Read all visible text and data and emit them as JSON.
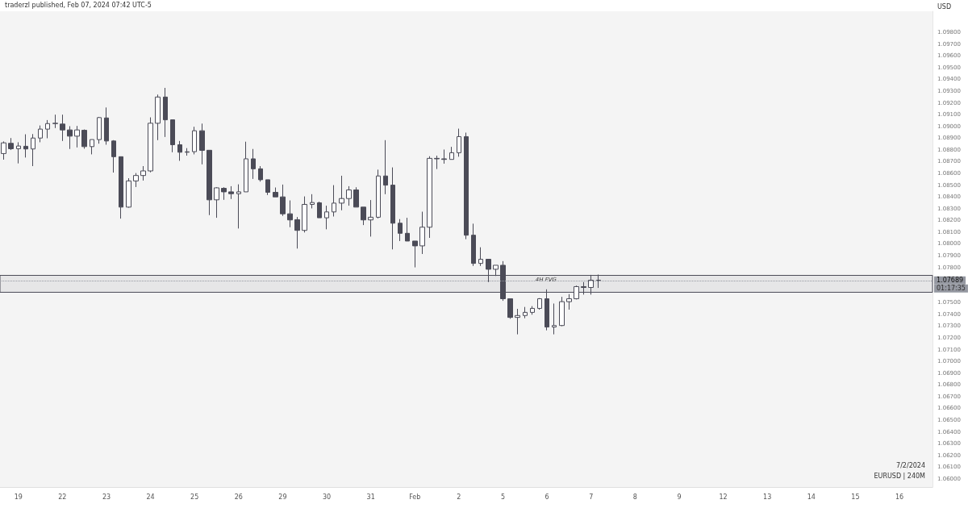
{
  "chart_data": {
    "type": "candlestick",
    "ylabel": "USD",
    "color": "#4b4b57",
    "grid": false,
    "categories": [
      null,
      null,
      "19",
      null,
      null,
      null,
      null,
      null,
      "22",
      null,
      null,
      null,
      null,
      null,
      "23",
      null,
      null,
      null,
      null,
      null,
      "24",
      null,
      null,
      null,
      null,
      null,
      "25",
      null,
      null,
      null,
      null,
      null,
      "26",
      null,
      null,
      null,
      null,
      null,
      "29",
      null,
      null,
      null,
      null,
      null,
      "30",
      null,
      null,
      null,
      null,
      null,
      "31",
      null,
      null,
      null,
      null,
      null,
      "Feb",
      null,
      null,
      null,
      null,
      null,
      "2",
      null,
      null,
      null,
      null,
      null,
      "5",
      null,
      null,
      null,
      null,
      null,
      "6",
      null,
      null,
      null,
      null,
      null,
      "7",
      null,
      null,
      null,
      null,
      null,
      "8",
      null,
      null,
      null,
      null,
      null,
      "9",
      null,
      null,
      null,
      null,
      null,
      "12",
      null,
      null,
      null,
      null,
      null,
      "13",
      null,
      null,
      null,
      null,
      null,
      "14",
      null,
      null,
      null,
      null,
      null,
      "15",
      null,
      null,
      null,
      null,
      null,
      "16",
      null,
      null,
      null,
      null
    ],
    "ohlc": [
      [
        1.08769,
        1.08872,
        1.08717,
        1.0886
      ],
      [
        1.08856,
        1.08901,
        1.08799,
        1.0881
      ],
      [
        1.0881,
        1.08865,
        1.08685,
        1.08833
      ],
      [
        1.08831,
        1.08933,
        1.08735,
        1.08808
      ],
      [
        1.08808,
        1.08935,
        1.08662,
        1.08901
      ],
      [
        1.08901,
        1.09008,
        1.08865,
        1.08977
      ],
      [
        1.08977,
        1.09054,
        1.08899,
        1.09024
      ],
      [
        1.09024,
        1.091,
        1.08986,
        1.09027
      ],
      [
        1.0902,
        1.091,
        1.08876,
        1.0897
      ],
      [
        1.0897,
        1.09002,
        1.08808,
        1.08917
      ],
      [
        1.08917,
        1.09004,
        1.08821,
        1.0897
      ],
      [
        1.08967,
        1.08974,
        1.0881,
        1.08828
      ],
      [
        1.08828,
        1.08888,
        1.08762,
        1.08888
      ],
      [
        1.08888,
        1.09081,
        1.08853,
        1.09075
      ],
      [
        1.09072,
        1.09161,
        1.08844,
        1.08876
      ],
      [
        1.08876,
        1.08883,
        1.08607,
        1.08742
      ],
      [
        1.08742,
        1.08742,
        1.08215,
        1.08313
      ],
      [
        1.08313,
        1.08559,
        1.08308,
        1.08536
      ],
      [
        1.08536,
        1.08603,
        1.08484,
        1.08582
      ],
      [
        1.08582,
        1.08662,
        1.08539,
        1.08621
      ],
      [
        1.08621,
        1.09077,
        1.08609,
        1.09027
      ],
      [
        1.09027,
        1.09271,
        1.08883,
        1.0925
      ],
      [
        1.0925,
        1.09328,
        1.0891,
        1.09056
      ],
      [
        1.09056,
        1.09056,
        1.0878,
        1.08844
      ],
      [
        1.08844,
        1.08876,
        1.08707,
        1.0878
      ],
      [
        1.0878,
        1.08815,
        1.08751,
        1.08784
      ],
      [
        1.08785,
        1.08997,
        1.08762,
        1.08963
      ],
      [
        1.08963,
        1.09024,
        1.08677,
        1.08796
      ],
      [
        1.08797,
        1.08797,
        1.08245,
        1.08375
      ],
      [
        1.08375,
        1.08482,
        1.08222,
        1.08477
      ],
      [
        1.08473,
        1.08482,
        1.08375,
        1.08443
      ],
      [
        1.08443,
        1.08491,
        1.08382,
        1.08427
      ],
      [
        1.08427,
        1.08507,
        1.08131,
        1.08443
      ],
      [
        1.08443,
        1.0887,
        1.08443,
        1.08724
      ],
      [
        1.08724,
        1.08808,
        1.08553,
        1.08639
      ],
      [
        1.08639,
        1.08662,
        1.0853,
        1.08546
      ],
      [
        1.08546,
        1.08546,
        1.08416,
        1.08439
      ],
      [
        1.08439,
        1.0848,
        1.084,
        1.084
      ],
      [
        1.084,
        1.08505,
        1.08238,
        1.08256
      ],
      [
        1.08256,
        1.0837,
        1.08142,
        1.08204
      ],
      [
        1.08206,
        1.08229,
        1.0796,
        1.08115
      ],
      [
        1.08115,
        1.08404,
        1.08097,
        1.08336
      ],
      [
        1.08336,
        1.08423,
        1.08302,
        1.08352
      ],
      [
        1.0835,
        1.08359,
        1.08222,
        1.08222
      ],
      [
        1.08222,
        1.08325,
        1.08124,
        1.08272
      ],
      [
        1.08272,
        1.085,
        1.08233,
        1.08347
      ],
      [
        1.08347,
        1.0858,
        1.08286,
        1.08386
      ],
      [
        1.08386,
        1.08491,
        1.08325,
        1.08459
      ],
      [
        1.08459,
        1.08482,
        1.08313,
        1.08313
      ],
      [
        1.08313,
        1.08313,
        1.0816,
        1.08204
      ],
      [
        1.08204,
        1.08373,
        1.08062,
        1.08227
      ],
      [
        1.08227,
        1.08632,
        1.08217,
        1.08578
      ],
      [
        1.08578,
        1.08883,
        1.08423,
        1.085
      ],
      [
        1.085,
        1.08651,
        1.07953,
        1.08176
      ],
      [
        1.08176,
        1.08211,
        1.08024,
        1.0809
      ],
      [
        1.0809,
        1.08222,
        1.08024,
        1.08024
      ],
      [
        1.08024,
        1.08024,
        1.078,
        1.07983
      ],
      [
        1.07983,
        1.08274,
        1.07914,
        1.08142
      ],
      [
        1.08142,
        1.08746,
        1.08051,
        1.08728
      ],
      [
        1.08728,
        1.08751,
        1.08637,
        1.08724
      ],
      [
        1.08724,
        1.08803,
        1.08683,
        1.08719
      ],
      [
        1.08719,
        1.08826,
        1.08719,
        1.08776
      ],
      [
        1.08776,
        1.08981,
        1.08742,
        1.08913
      ],
      [
        1.08913,
        1.08947,
        1.0804,
        1.08074
      ],
      [
        1.08074,
        1.08172,
        1.07812,
        1.07834
      ],
      [
        1.07834,
        1.07971,
        1.07812,
        1.07869
      ],
      [
        1.07869,
        1.07869,
        1.07675,
        1.07784
      ],
      [
        1.07784,
        1.07818,
        1.07727,
        1.07818
      ],
      [
        1.07818,
        1.07853,
        1.07515,
        1.07533
      ],
      [
        1.07533,
        1.07533,
        1.07362,
        1.07374
      ],
      [
        1.07374,
        1.07447,
        1.0723,
        1.0739
      ],
      [
        1.0739,
        1.07463,
        1.07367,
        1.07417
      ],
      [
        1.07417,
        1.0747,
        1.07397,
        1.07451
      ],
      [
        1.07451,
        1.07538,
        1.0744,
        1.07533
      ],
      [
        1.07533,
        1.07613,
        1.07264,
        1.07292
      ],
      [
        1.07292,
        1.07492,
        1.0723,
        1.07305
      ],
      [
        1.07305,
        1.07549,
        1.07299,
        1.07508
      ],
      [
        1.07508,
        1.07572,
        1.0744,
        1.07533
      ],
      [
        1.07533,
        1.07645,
        1.07527,
        1.07636
      ],
      [
        1.07636,
        1.07675,
        1.07568,
        1.07629
      ],
      [
        1.07629,
        1.07736,
        1.07568,
        1.07691
      ],
      [
        1.07691,
        1.07739,
        1.07625,
        1.07689
      ],
      null,
      null,
      null,
      null,
      null,
      null,
      null,
      null,
      null,
      null,
      null,
      null,
      null,
      null,
      null,
      null,
      null,
      null,
      null,
      null,
      null,
      null,
      null,
      null,
      null,
      null,
      null,
      null,
      null,
      null,
      null,
      null,
      null,
      null,
      null,
      null,
      null,
      null,
      null,
      null,
      null,
      null,
      null,
      null,
      null
    ],
    "ylim": [
      1.0593,
      1.0998
    ],
    "yticks": [
      {
        "value": 1.06,
        "label": "1.06000"
      },
      {
        "value": 1.061,
        "label": "1.06100"
      },
      {
        "value": 1.062,
        "label": "1.06200"
      },
      {
        "value": 1.063,
        "label": "1.06300"
      },
      {
        "value": 1.064,
        "label": "1.06400"
      },
      {
        "value": 1.065,
        "label": "1.06500"
      },
      {
        "value": 1.066,
        "label": "1.06600"
      },
      {
        "value": 1.067,
        "label": "1.06700"
      },
      {
        "value": 1.068,
        "label": "1.06800"
      },
      {
        "value": 1.069,
        "label": "1.06900"
      },
      {
        "value": 1.07,
        "label": "1.07000"
      },
      {
        "value": 1.071,
        "label": "1.07100"
      },
      {
        "value": 1.072,
        "label": "1.07200"
      },
      {
        "value": 1.073,
        "label": "1.07300"
      },
      {
        "value": 1.074,
        "label": "1.07400"
      },
      {
        "value": 1.075,
        "label": "1.07500"
      },
      {
        "value": 1.078,
        "label": "1.07800"
      },
      {
        "value": 1.079,
        "label": "1.07900"
      },
      {
        "value": 1.08,
        "label": "1.08000"
      },
      {
        "value": 1.081,
        "label": "1.08100"
      },
      {
        "value": 1.082,
        "label": "1.08200"
      },
      {
        "value": 1.083,
        "label": "1.08300"
      },
      {
        "value": 1.084,
        "label": "1.08400"
      },
      {
        "value": 1.085,
        "label": "1.08500"
      },
      {
        "value": 1.086,
        "label": "1.08600"
      },
      {
        "value": 1.087,
        "label": "1.08700"
      },
      {
        "value": 1.088,
        "label": "1.08800"
      },
      {
        "value": 1.089,
        "label": "1.08900"
      },
      {
        "value": 1.09,
        "label": "1.09000"
      },
      {
        "value": 1.091,
        "label": "1.09100"
      },
      {
        "value": 1.092,
        "label": "1.09200"
      },
      {
        "value": 1.093,
        "label": "1.09300"
      },
      {
        "value": 1.094,
        "label": "1.09400"
      },
      {
        "value": 1.095,
        "label": "1.09500"
      },
      {
        "value": 1.096,
        "label": "1.09600"
      },
      {
        "value": 1.097,
        "label": "1.09700"
      },
      {
        "value": 1.098,
        "label": "1.09800"
      }
    ],
    "ref_lines": [
      {
        "axis": "y",
        "value": 1.07689,
        "label": "1.07689",
        "color": "#9598a1",
        "line_style": "dotted"
      }
    ],
    "bands": [
      {
        "axis": "y",
        "from": 1.07588,
        "to": 1.07732,
        "color": "#4b4b57"
      }
    ],
    "annotations": [
      "traderzl published, Feb 07, 2024 07:42 UTC-5",
      "01:17:35",
      "7/2/2024",
      "EURUSD | 240M",
      "4H FVG"
    ]
  }
}
